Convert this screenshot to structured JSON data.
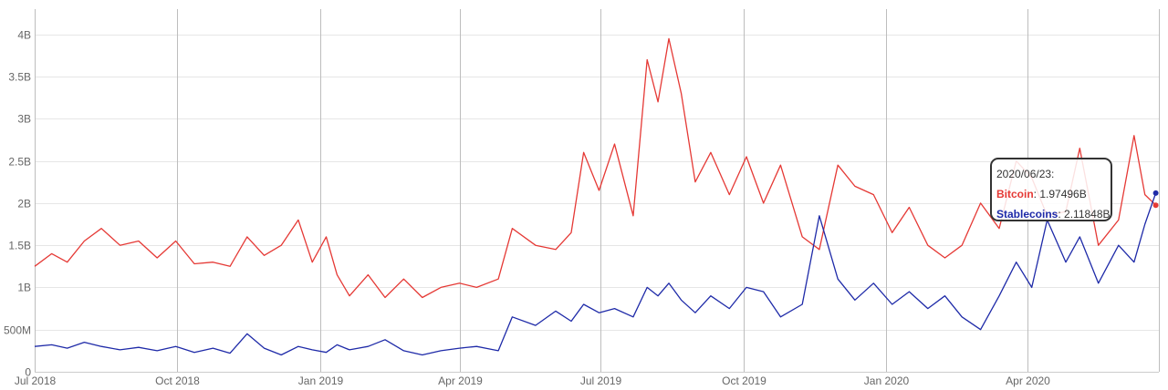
{
  "chart_data": {
    "type": "line",
    "x_unit": "date",
    "xlim": [
      "2018-07-01",
      "2020-06-25"
    ],
    "ylim": [
      0,
      4300000000
    ],
    "grid": true,
    "y_ticks": [
      {
        "value": 0,
        "label": "0"
      },
      {
        "value": 500000000,
        "label": "500M"
      },
      {
        "value": 1000000000,
        "label": "1B"
      },
      {
        "value": 1500000000,
        "label": "1.5B"
      },
      {
        "value": 2000000000,
        "label": "2B"
      },
      {
        "value": 2500000000,
        "label": "2.5B"
      },
      {
        "value": 3000000000,
        "label": "3B"
      },
      {
        "value": 3500000000,
        "label": "3.5B"
      },
      {
        "value": 4000000000,
        "label": "4B"
      }
    ],
    "x_ticks": [
      {
        "date": "2018-07-01",
        "label": "Jul 2018"
      },
      {
        "date": "2018-10-01",
        "label": "Oct 2018"
      },
      {
        "date": "2019-01-01",
        "label": "Jan 2019"
      },
      {
        "date": "2019-04-01",
        "label": "Apr 2019"
      },
      {
        "date": "2019-07-01",
        "label": "Jul 2019"
      },
      {
        "date": "2019-10-01",
        "label": "Oct 2019"
      },
      {
        "date": "2020-01-01",
        "label": "Jan 2020"
      },
      {
        "date": "2020-04-01",
        "label": "Apr 2020"
      }
    ],
    "series": [
      {
        "name": "Bitcoin",
        "color": "#e53935",
        "points": [
          [
            "2018-07-01",
            1250000000
          ],
          [
            "2018-07-12",
            1400000000
          ],
          [
            "2018-07-22",
            1300000000
          ],
          [
            "2018-08-02",
            1550000000
          ],
          [
            "2018-08-13",
            1700000000
          ],
          [
            "2018-08-25",
            1500000000
          ],
          [
            "2018-09-06",
            1550000000
          ],
          [
            "2018-09-18",
            1350000000
          ],
          [
            "2018-09-30",
            1550000000
          ],
          [
            "2018-10-12",
            1280000000
          ],
          [
            "2018-10-24",
            1300000000
          ],
          [
            "2018-11-04",
            1250000000
          ],
          [
            "2018-11-15",
            1600000000
          ],
          [
            "2018-11-26",
            1380000000
          ],
          [
            "2018-12-07",
            1500000000
          ],
          [
            "2018-12-18",
            1800000000
          ],
          [
            "2018-12-27",
            1300000000
          ],
          [
            "2019-01-05",
            1600000000
          ],
          [
            "2019-01-12",
            1150000000
          ],
          [
            "2019-01-20",
            900000000
          ],
          [
            "2019-02-01",
            1150000000
          ],
          [
            "2019-02-12",
            880000000
          ],
          [
            "2019-02-24",
            1100000000
          ],
          [
            "2019-03-08",
            880000000
          ],
          [
            "2019-03-20",
            1000000000
          ],
          [
            "2019-04-01",
            1050000000
          ],
          [
            "2019-04-12",
            1000000000
          ],
          [
            "2019-04-26",
            1100000000
          ],
          [
            "2019-05-05",
            1700000000
          ],
          [
            "2019-05-20",
            1500000000
          ],
          [
            "2019-06-02",
            1450000000
          ],
          [
            "2019-06-12",
            1650000000
          ],
          [
            "2019-06-20",
            2600000000
          ],
          [
            "2019-06-30",
            2150000000
          ],
          [
            "2019-07-10",
            2700000000
          ],
          [
            "2019-07-22",
            1850000000
          ],
          [
            "2019-07-31",
            3700000000
          ],
          [
            "2019-08-07",
            3200000000
          ],
          [
            "2019-08-14",
            3950000000
          ],
          [
            "2019-08-22",
            3300000000
          ],
          [
            "2019-08-31",
            2250000000
          ],
          [
            "2019-09-10",
            2600000000
          ],
          [
            "2019-09-22",
            2100000000
          ],
          [
            "2019-10-03",
            2550000000
          ],
          [
            "2019-10-14",
            2000000000
          ],
          [
            "2019-10-25",
            2450000000
          ],
          [
            "2019-11-08",
            1600000000
          ],
          [
            "2019-11-19",
            1450000000
          ],
          [
            "2019-12-01",
            2450000000
          ],
          [
            "2019-12-12",
            2200000000
          ],
          [
            "2019-12-24",
            2100000000
          ],
          [
            "2020-01-05",
            1650000000
          ],
          [
            "2020-01-16",
            1950000000
          ],
          [
            "2020-01-28",
            1500000000
          ],
          [
            "2020-02-08",
            1350000000
          ],
          [
            "2020-02-19",
            1500000000
          ],
          [
            "2020-03-02",
            2000000000
          ],
          [
            "2020-03-14",
            1700000000
          ],
          [
            "2020-03-25",
            2500000000
          ],
          [
            "2020-04-04",
            2300000000
          ],
          [
            "2020-04-14",
            1850000000
          ],
          [
            "2020-04-26",
            1900000000
          ],
          [
            "2020-05-05",
            2650000000
          ],
          [
            "2020-05-17",
            1500000000
          ],
          [
            "2020-05-30",
            1800000000
          ],
          [
            "2020-06-09",
            2800000000
          ],
          [
            "2020-06-16",
            2100000000
          ],
          [
            "2020-06-23",
            1974960000
          ]
        ]
      },
      {
        "name": "Stablecoins",
        "color": "#1e2aa8",
        "points": [
          [
            "2018-07-01",
            300000000
          ],
          [
            "2018-07-12",
            320000000
          ],
          [
            "2018-07-22",
            280000000
          ],
          [
            "2018-08-02",
            350000000
          ],
          [
            "2018-08-13",
            300000000
          ],
          [
            "2018-08-25",
            260000000
          ],
          [
            "2018-09-06",
            290000000
          ],
          [
            "2018-09-18",
            250000000
          ],
          [
            "2018-09-30",
            300000000
          ],
          [
            "2018-10-12",
            230000000
          ],
          [
            "2018-10-24",
            280000000
          ],
          [
            "2018-11-04",
            220000000
          ],
          [
            "2018-11-15",
            450000000
          ],
          [
            "2018-11-26",
            280000000
          ],
          [
            "2018-12-07",
            200000000
          ],
          [
            "2018-12-18",
            300000000
          ],
          [
            "2018-12-27",
            260000000
          ],
          [
            "2019-01-05",
            230000000
          ],
          [
            "2019-01-12",
            320000000
          ],
          [
            "2019-01-20",
            260000000
          ],
          [
            "2019-02-01",
            300000000
          ],
          [
            "2019-02-12",
            380000000
          ],
          [
            "2019-02-24",
            250000000
          ],
          [
            "2019-03-08",
            200000000
          ],
          [
            "2019-03-20",
            250000000
          ],
          [
            "2019-04-01",
            280000000
          ],
          [
            "2019-04-12",
            300000000
          ],
          [
            "2019-04-26",
            250000000
          ],
          [
            "2019-05-05",
            650000000
          ],
          [
            "2019-05-20",
            550000000
          ],
          [
            "2019-06-02",
            720000000
          ],
          [
            "2019-06-12",
            600000000
          ],
          [
            "2019-06-20",
            800000000
          ],
          [
            "2019-06-30",
            700000000
          ],
          [
            "2019-07-10",
            750000000
          ],
          [
            "2019-07-22",
            650000000
          ],
          [
            "2019-07-31",
            1000000000
          ],
          [
            "2019-08-07",
            900000000
          ],
          [
            "2019-08-14",
            1050000000
          ],
          [
            "2019-08-22",
            850000000
          ],
          [
            "2019-08-31",
            700000000
          ],
          [
            "2019-09-10",
            900000000
          ],
          [
            "2019-09-22",
            750000000
          ],
          [
            "2019-10-03",
            1000000000
          ],
          [
            "2019-10-14",
            950000000
          ],
          [
            "2019-10-25",
            650000000
          ],
          [
            "2019-11-08",
            800000000
          ],
          [
            "2019-11-19",
            1850000000
          ],
          [
            "2019-12-01",
            1100000000
          ],
          [
            "2019-12-12",
            850000000
          ],
          [
            "2019-12-24",
            1050000000
          ],
          [
            "2020-01-05",
            800000000
          ],
          [
            "2020-01-16",
            950000000
          ],
          [
            "2020-01-28",
            750000000
          ],
          [
            "2020-02-08",
            900000000
          ],
          [
            "2020-02-19",
            650000000
          ],
          [
            "2020-03-02",
            500000000
          ],
          [
            "2020-03-14",
            900000000
          ],
          [
            "2020-03-25",
            1300000000
          ],
          [
            "2020-04-04",
            1000000000
          ],
          [
            "2020-04-14",
            1800000000
          ],
          [
            "2020-04-26",
            1300000000
          ],
          [
            "2020-05-05",
            1600000000
          ],
          [
            "2020-05-17",
            1050000000
          ],
          [
            "2020-05-30",
            1500000000
          ],
          [
            "2020-06-09",
            1300000000
          ],
          [
            "2020-06-16",
            1750000000
          ],
          [
            "2020-06-23",
            2118480000
          ]
        ]
      }
    ],
    "tooltip": {
      "date": "2020/06/23:",
      "rows": [
        {
          "name": "Bitcoin",
          "value": "1.97496B",
          "color": "#e53935"
        },
        {
          "name": "Stablecoins",
          "value": "2.11848B",
          "color": "#1e2aa8"
        }
      ]
    }
  }
}
